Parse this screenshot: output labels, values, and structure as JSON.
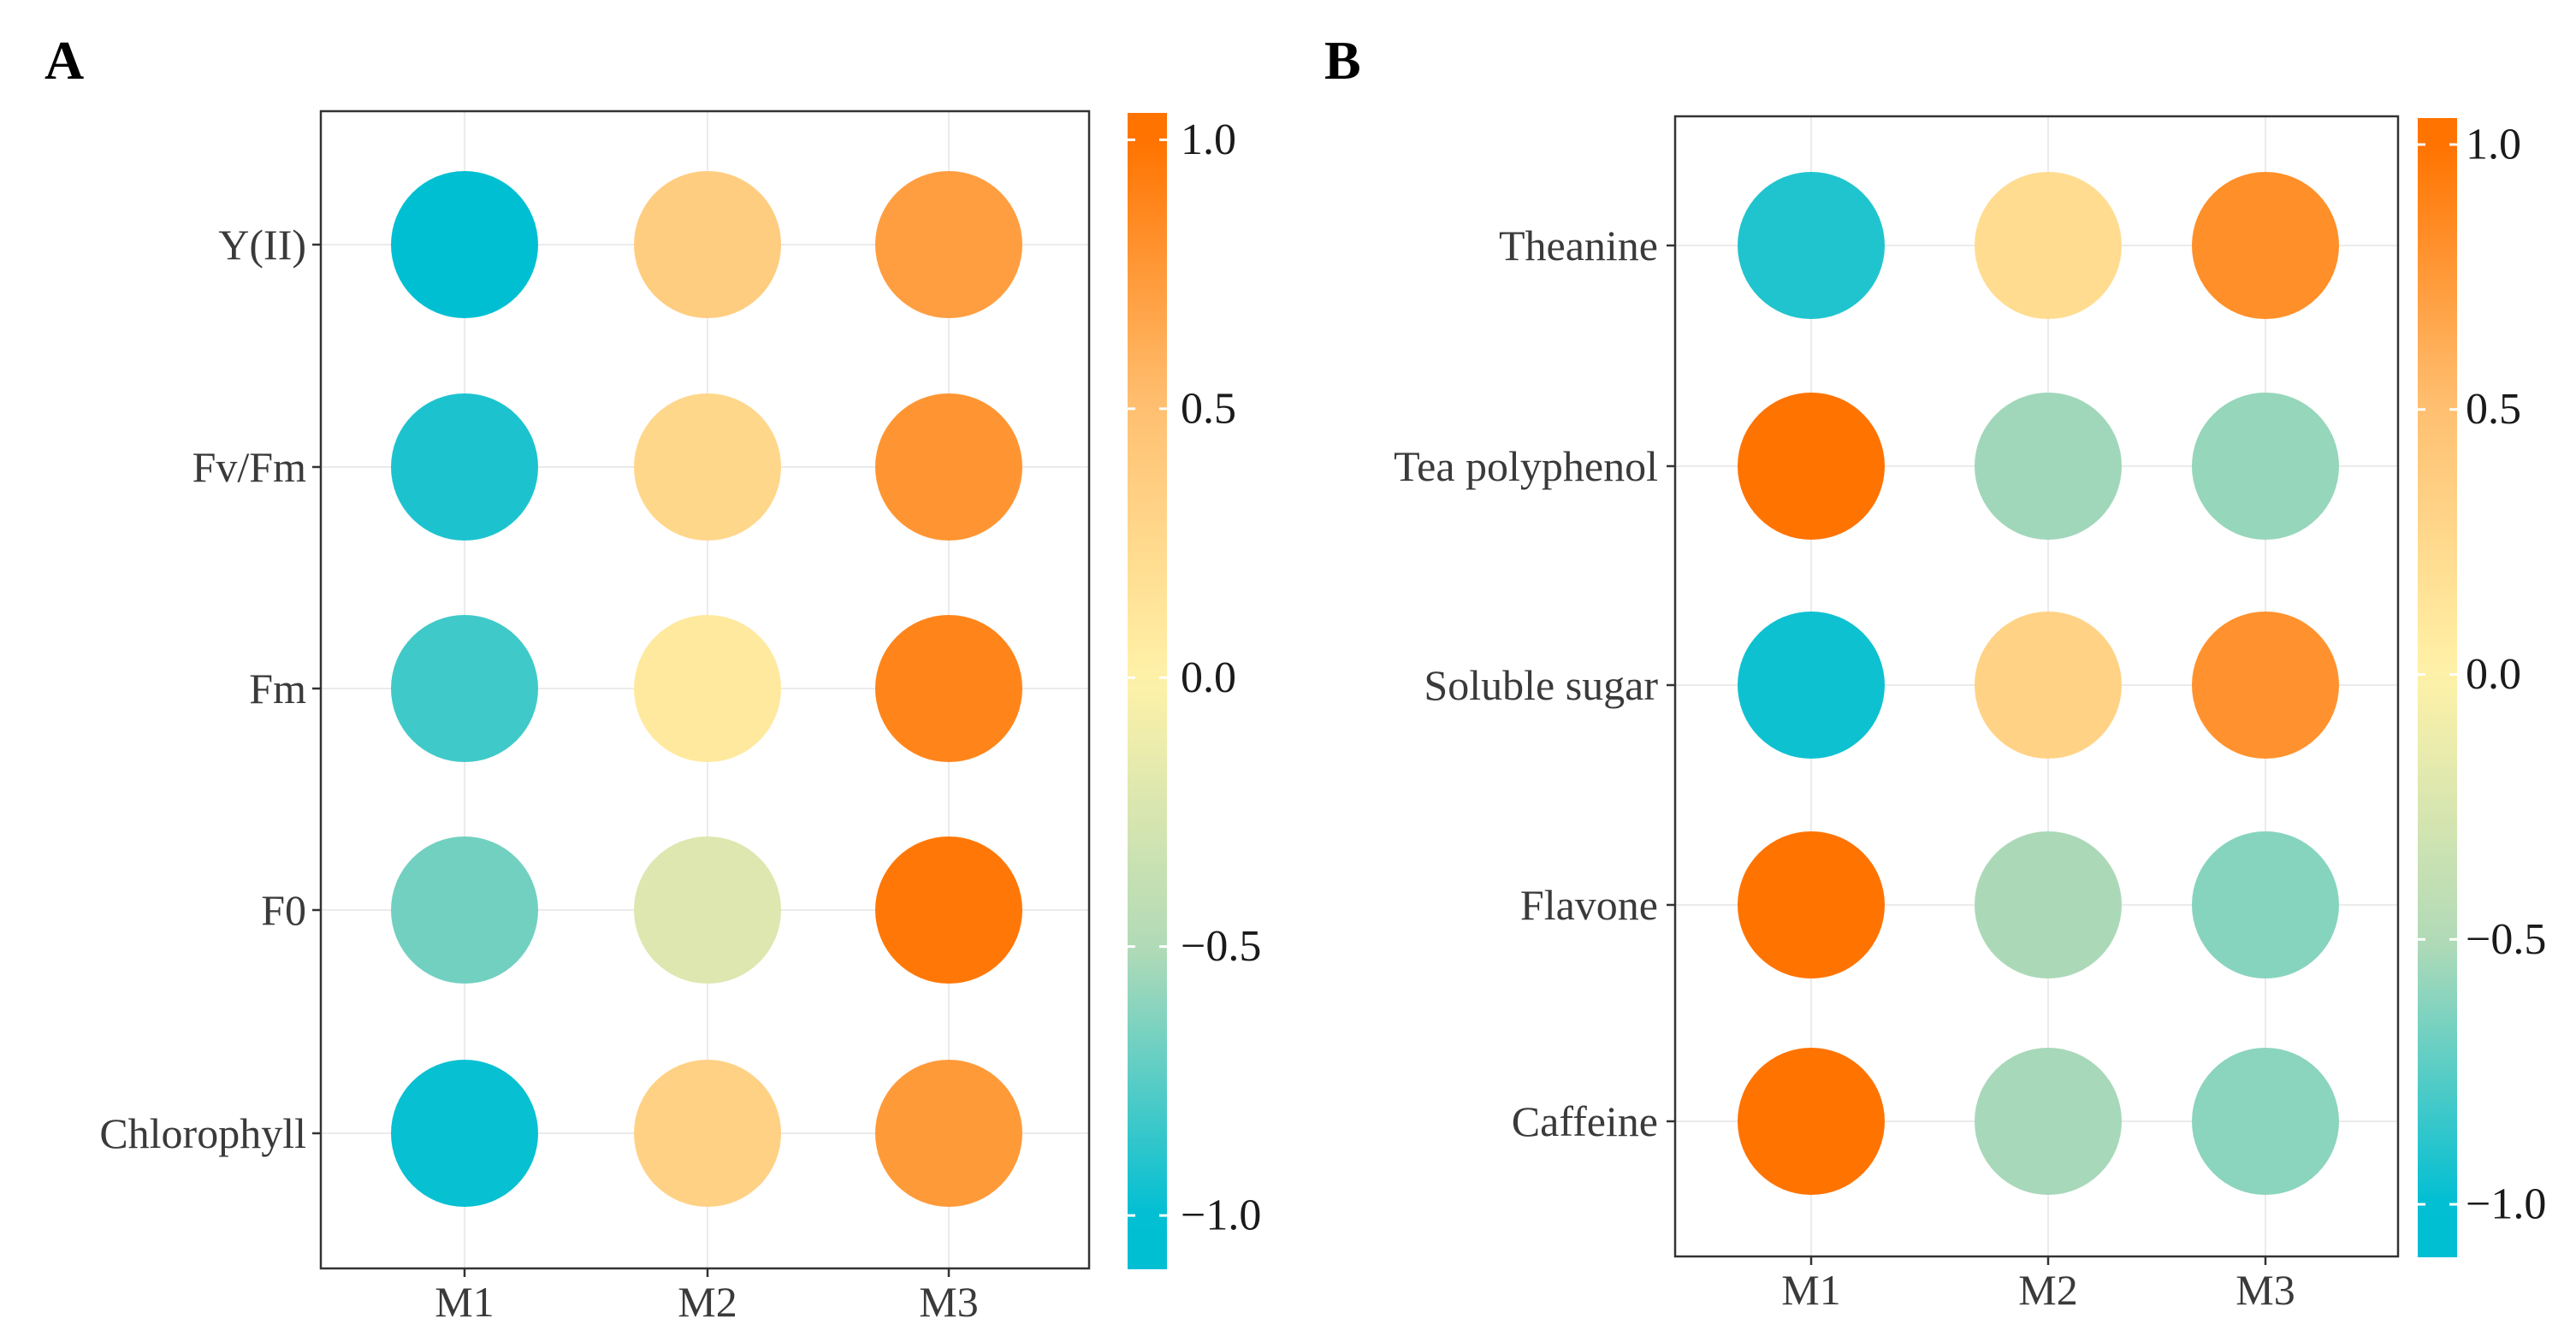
{
  "chart_data": [
    {
      "type": "heatmap",
      "panel_label": "A",
      "title": "",
      "xlabel": "",
      "ylabel": "",
      "columns": [
        "M1",
        "M2",
        "M3"
      ],
      "rows": [
        "Y(II)",
        "Fv/Fm",
        "Fm",
        "F0",
        "Chlorophyll"
      ],
      "values": [
        [
          -1.0,
          0.37,
          0.72
        ],
        [
          -0.92,
          0.27,
          0.78
        ],
        [
          -0.82,
          0.09,
          0.88
        ],
        [
          -0.68,
          -0.22,
          0.97
        ],
        [
          -0.98,
          0.33,
          0.75
        ]
      ],
      "colorbar": {
        "range": [
          -1.1,
          1.05
        ],
        "ticks": [
          1.0,
          0.5,
          0.0,
          -0.5,
          -1.0
        ],
        "tick_labels": [
          "1.0",
          "0.5",
          "0.0",
          "−0.5",
          "−1.0"
        ],
        "colors": {
          "low": "#00bfd3",
          "mid": "#fff2a8",
          "high": "#ff7300",
          "lowmid": "#b2dab7",
          "midhigh": "#ffc072"
        }
      }
    },
    {
      "type": "heatmap",
      "panel_label": "B",
      "title": "",
      "xlabel": "",
      "ylabel": "",
      "columns": [
        "M1",
        "M2",
        "M3"
      ],
      "rows": [
        "Theanine",
        "Tea polyphenol",
        "Soluble sugar",
        "Flavone",
        "Caffeine"
      ],
      "values": [
        [
          -0.91,
          0.22,
          0.82
        ],
        [
          1.0,
          -0.55,
          -0.58
        ],
        [
          -0.96,
          0.32,
          0.8
        ],
        [
          1.0,
          -0.52,
          -0.62
        ],
        [
          1.0,
          -0.53,
          -0.61
        ]
      ],
      "colorbar": {
        "range": [
          -1.1,
          1.05
        ],
        "ticks": [
          1.0,
          0.5,
          0.0,
          -0.5,
          -1.0
        ],
        "tick_labels": [
          "1.0",
          "0.5",
          "0.0",
          "−0.5",
          "−1.0"
        ],
        "colors": {
          "low": "#00bfd3",
          "mid": "#fff2a8",
          "high": "#ff7300",
          "lowmid": "#b2dab7",
          "midhigh": "#ffc072"
        }
      }
    }
  ]
}
